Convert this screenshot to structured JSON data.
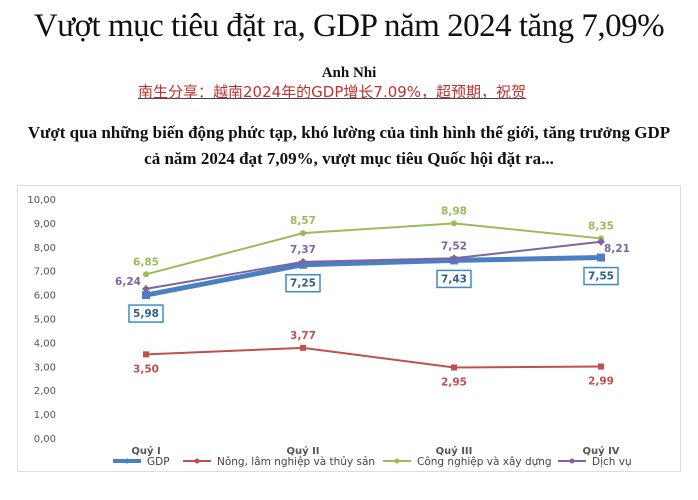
{
  "headline": "Vượt mục tiêu đặt ra, GDP năm 2024 tăng 7,09%",
  "author": "Anh Nhi",
  "share_link": "南生分享：越南2024年的GDP增长7.09%，超预期，祝贺",
  "lead": "Vượt qua những biến động phức tạp, khó lường của tình hình thế giới, tăng trưởng GDP cả năm 2024 đạt 7,09%, vượt mục tiêu Quốc hội đặt ra...",
  "chart_data": {
    "type": "line",
    "categories": [
      "Quý I",
      "Quý II",
      "Quý III",
      "Quý IV"
    ],
    "ylim": [
      0,
      10
    ],
    "yticks": [
      "0,00",
      "1,00",
      "2,00",
      "3,00",
      "4,00",
      "5,00",
      "6,00",
      "7,00",
      "8,00",
      "9,00",
      "10,00"
    ],
    "grid": false,
    "legend": "bottom",
    "series": [
      {
        "name": "GDP",
        "values": [
          5.98,
          7.25,
          7.43,
          7.55
        ],
        "labels": [
          "5,98",
          "7,25",
          "7,43",
          "7,55"
        ],
        "color": "#4a7fc1"
      },
      {
        "name": "Nông, lâm nghiệp và thủy sản",
        "values": [
          3.5,
          3.77,
          2.95,
          2.99
        ],
        "labels": [
          "3,50",
          "3,77",
          "2,95",
          "2,99"
        ],
        "color": "#c0504d"
      },
      {
        "name": "Công nghiệp và xây dựng",
        "values": [
          6.85,
          8.57,
          8.98,
          8.35
        ],
        "labels": [
          "6,85",
          "8,57",
          "8,98",
          "8,35"
        ],
        "color": "#9bbb59"
      },
      {
        "name": "Dịch vụ",
        "values": [
          6.24,
          7.37,
          7.52,
          8.21
        ],
        "labels": [
          "6,24",
          "7,37",
          "7,52",
          "8,21"
        ],
        "color": "#8064a2"
      }
    ]
  }
}
